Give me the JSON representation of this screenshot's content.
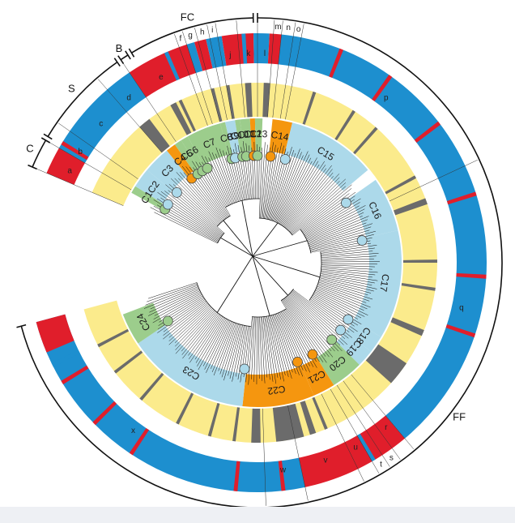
{
  "colors": {
    "blue": "#1d8fcf",
    "red": "#e01e2b",
    "yellow": "#fbeb8c",
    "gray": "#6b6b6b",
    "green_clade": "#9ccd8c",
    "blue_clade": "#acd9ea",
    "orange_clade": "#f5960f",
    "tree": "#111111"
  },
  "groups": [
    {
      "label": "C",
      "start": 293,
      "end": 300
    },
    {
      "label": "S",
      "start": 301,
      "end": 325
    },
    {
      "label": "B",
      "start": 326,
      "end": 328
    },
    {
      "label": "FC",
      "start": 329,
      "end": 359
    },
    {
      "label": "FF",
      "start": 360,
      "end": 255
    }
  ],
  "outer_segments": [
    {
      "label": "a",
      "start": 293,
      "end": 299
    },
    {
      "label": "b",
      "start": 300,
      "end": 304
    },
    {
      "label": "c",
      "start": 305,
      "end": 318
    },
    {
      "label": "d",
      "start": 319,
      "end": 325
    },
    {
      "label": "e",
      "start": 326,
      "end": 339
    },
    {
      "label": "f",
      "start": 340,
      "end": 342
    },
    {
      "label": "g",
      "start": 342,
      "end": 345
    },
    {
      "label": "h",
      "start": 345,
      "end": 348
    },
    {
      "label": "i",
      "start": 348,
      "end": 350
    },
    {
      "label": "j",
      "start": 350,
      "end": 355
    },
    {
      "label": "k",
      "start": 355,
      "end": 360
    },
    {
      "label": "l",
      "start": 360,
      "end": 364
    },
    {
      "label": "m",
      "start": 364,
      "end": 366
    },
    {
      "label": "n",
      "start": 366,
      "end": 369
    },
    {
      "label": "o",
      "start": 369,
      "end": 371
    },
    {
      "label": "p",
      "start": 371,
      "end": 425
    },
    {
      "label": "q",
      "start": 425,
      "end": 500
    },
    {
      "label": "r",
      "start": 500,
      "end": 504
    },
    {
      "label": "s",
      "start": 504,
      "end": 507
    },
    {
      "label": "t",
      "start": 507,
      "end": 510
    },
    {
      "label": "u",
      "start": 510,
      "end": 514
    },
    {
      "label": "v",
      "start": 514,
      "end": 528
    },
    {
      "label": "w",
      "start": 528,
      "end": 538
    },
    {
      "label": "x",
      "start": 538,
      "end": 615
    }
  ],
  "clades": [
    {
      "label": "C1",
      "color": "green",
      "start": 299,
      "end": 302
    },
    {
      "label": "C2",
      "color": "blue",
      "start": 302,
      "end": 310
    },
    {
      "label": "C3",
      "color": "blue",
      "start": 310,
      "end": 321
    },
    {
      "label": "C4",
      "color": "orange",
      "start": 321,
      "end": 325
    },
    {
      "label": "C5",
      "color": "green",
      "start": 325,
      "end": 328
    },
    {
      "label": "C6",
      "color": "green",
      "start": 328,
      "end": 331
    },
    {
      "label": "C7",
      "color": "green",
      "start": 331,
      "end": 345
    },
    {
      "label": "C8",
      "color": "green",
      "start": 345,
      "end": 347
    },
    {
      "label": "C9",
      "color": "blue",
      "start": 347,
      "end": 351
    },
    {
      "label": "C10",
      "color": "green",
      "start": 351,
      "end": 353
    },
    {
      "label": "C11",
      "color": "green",
      "start": 353,
      "end": 357
    },
    {
      "label": "C12",
      "color": "orange",
      "start": 357,
      "end": 359
    },
    {
      "label": "C13",
      "color": "green",
      "start": 359,
      "end": 362
    },
    {
      "label": "C14",
      "color": "orange",
      "start": 366,
      "end": 374
    },
    {
      "label": "C15",
      "color": "blue",
      "start": 374,
      "end": 410
    },
    {
      "label": "C16",
      "color": "blue",
      "start": 415,
      "end": 437
    },
    {
      "label": "C17",
      "color": "blue",
      "start": 437,
      "end": 481
    },
    {
      "label": "C18",
      "color": "blue",
      "start": 481,
      "end": 488
    },
    {
      "label": "C19",
      "color": "blue",
      "start": 488,
      "end": 495
    },
    {
      "label": "C20",
      "color": "green",
      "start": 495,
      "end": 508
    },
    {
      "label": "C21",
      "color": "orange",
      "start": 508,
      "end": 517
    },
    {
      "label": "C22",
      "color": "orange",
      "start": 517,
      "end": 546
    },
    {
      "label": "C23",
      "color": "blue",
      "start": 546,
      "end": 596
    },
    {
      "label": "C24",
      "color": "green",
      "start": 596,
      "end": 609
    }
  ],
  "outer_ring_base": [
    {
      "start": 293,
      "end": 300,
      "color": "red"
    },
    {
      "start": 300,
      "end": 326,
      "color": "blue"
    },
    {
      "start": 326,
      "end": 342,
      "color": "red"
    },
    {
      "start": 342,
      "end": 344,
      "color": "blue"
    },
    {
      "start": 344,
      "end": 347,
      "color": "red"
    },
    {
      "start": 347,
      "end": 351,
      "color": "blue"
    },
    {
      "start": 351,
      "end": 359,
      "color": "red"
    },
    {
      "start": 359,
      "end": 363,
      "color": "blue"
    },
    {
      "start": 363,
      "end": 366,
      "color": "red"
    },
    {
      "start": 366,
      "end": 500,
      "color": "blue"
    },
    {
      "start": 500,
      "end": 528,
      "color": "red"
    },
    {
      "start": 528,
      "end": 615,
      "color": "blue"
    },
    {
      "start": 607,
      "end": 615,
      "color": "red"
    }
  ],
  "outer_ring_marks": [
    {
      "start": 301,
      "end": 302,
      "color": "red"
    },
    {
      "start": 336,
      "end": 337,
      "color": "blue"
    },
    {
      "start": 356,
      "end": 357,
      "color": "blue"
    },
    {
      "start": 381,
      "end": 382,
      "color": "red"
    },
    {
      "start": 395,
      "end": 396,
      "color": "red"
    },
    {
      "start": 412,
      "end": 413,
      "color": "red"
    },
    {
      "start": 432,
      "end": 433,
      "color": "red"
    },
    {
      "start": 453,
      "end": 454,
      "color": "red"
    },
    {
      "start": 468,
      "end": 469,
      "color": "red"
    },
    {
      "start": 509,
      "end": 510,
      "color": "blue"
    },
    {
      "start": 533,
      "end": 534,
      "color": "red"
    },
    {
      "start": 545,
      "end": 546,
      "color": "red"
    },
    {
      "start": 573,
      "end": 574,
      "color": "red"
    },
    {
      "start": 585,
      "end": 586,
      "color": "red"
    },
    {
      "start": 598,
      "end": 599,
      "color": "red"
    },
    {
      "start": 603,
      "end": 604,
      "color": "blue"
    }
  ],
  "inner_ring_marks": [
    {
      "start": 319,
      "end": 323
    },
    {
      "start": 331,
      "end": 333
    },
    {
      "start": 334,
      "end": 335
    },
    {
      "start": 345,
      "end": 346
    },
    {
      "start": 350,
      "end": 351
    },
    {
      "start": 356,
      "end": 358
    },
    {
      "start": 362,
      "end": 364
    },
    {
      "start": 378,
      "end": 379
    },
    {
      "start": 392,
      "end": 393
    },
    {
      "start": 401,
      "end": 402
    },
    {
      "start": 421,
      "end": 422
    },
    {
      "start": 429,
      "end": 431
    },
    {
      "start": 449,
      "end": 450
    },
    {
      "start": 458,
      "end": 459
    },
    {
      "start": 472,
      "end": 474
    },
    {
      "start": 484,
      "end": 492
    },
    {
      "start": 517,
      "end": 518
    },
    {
      "start": 521,
      "end": 523
    },
    {
      "start": 525,
      "end": 534
    },
    {
      "start": 539,
      "end": 542
    },
    {
      "start": 547,
      "end": 548
    },
    {
      "start": 555,
      "end": 556
    },
    {
      "start": 566,
      "end": 567
    },
    {
      "start": 580,
      "end": 581
    },
    {
      "start": 592,
      "end": 593
    },
    {
      "start": 602,
      "end": 603
    }
  ]
}
